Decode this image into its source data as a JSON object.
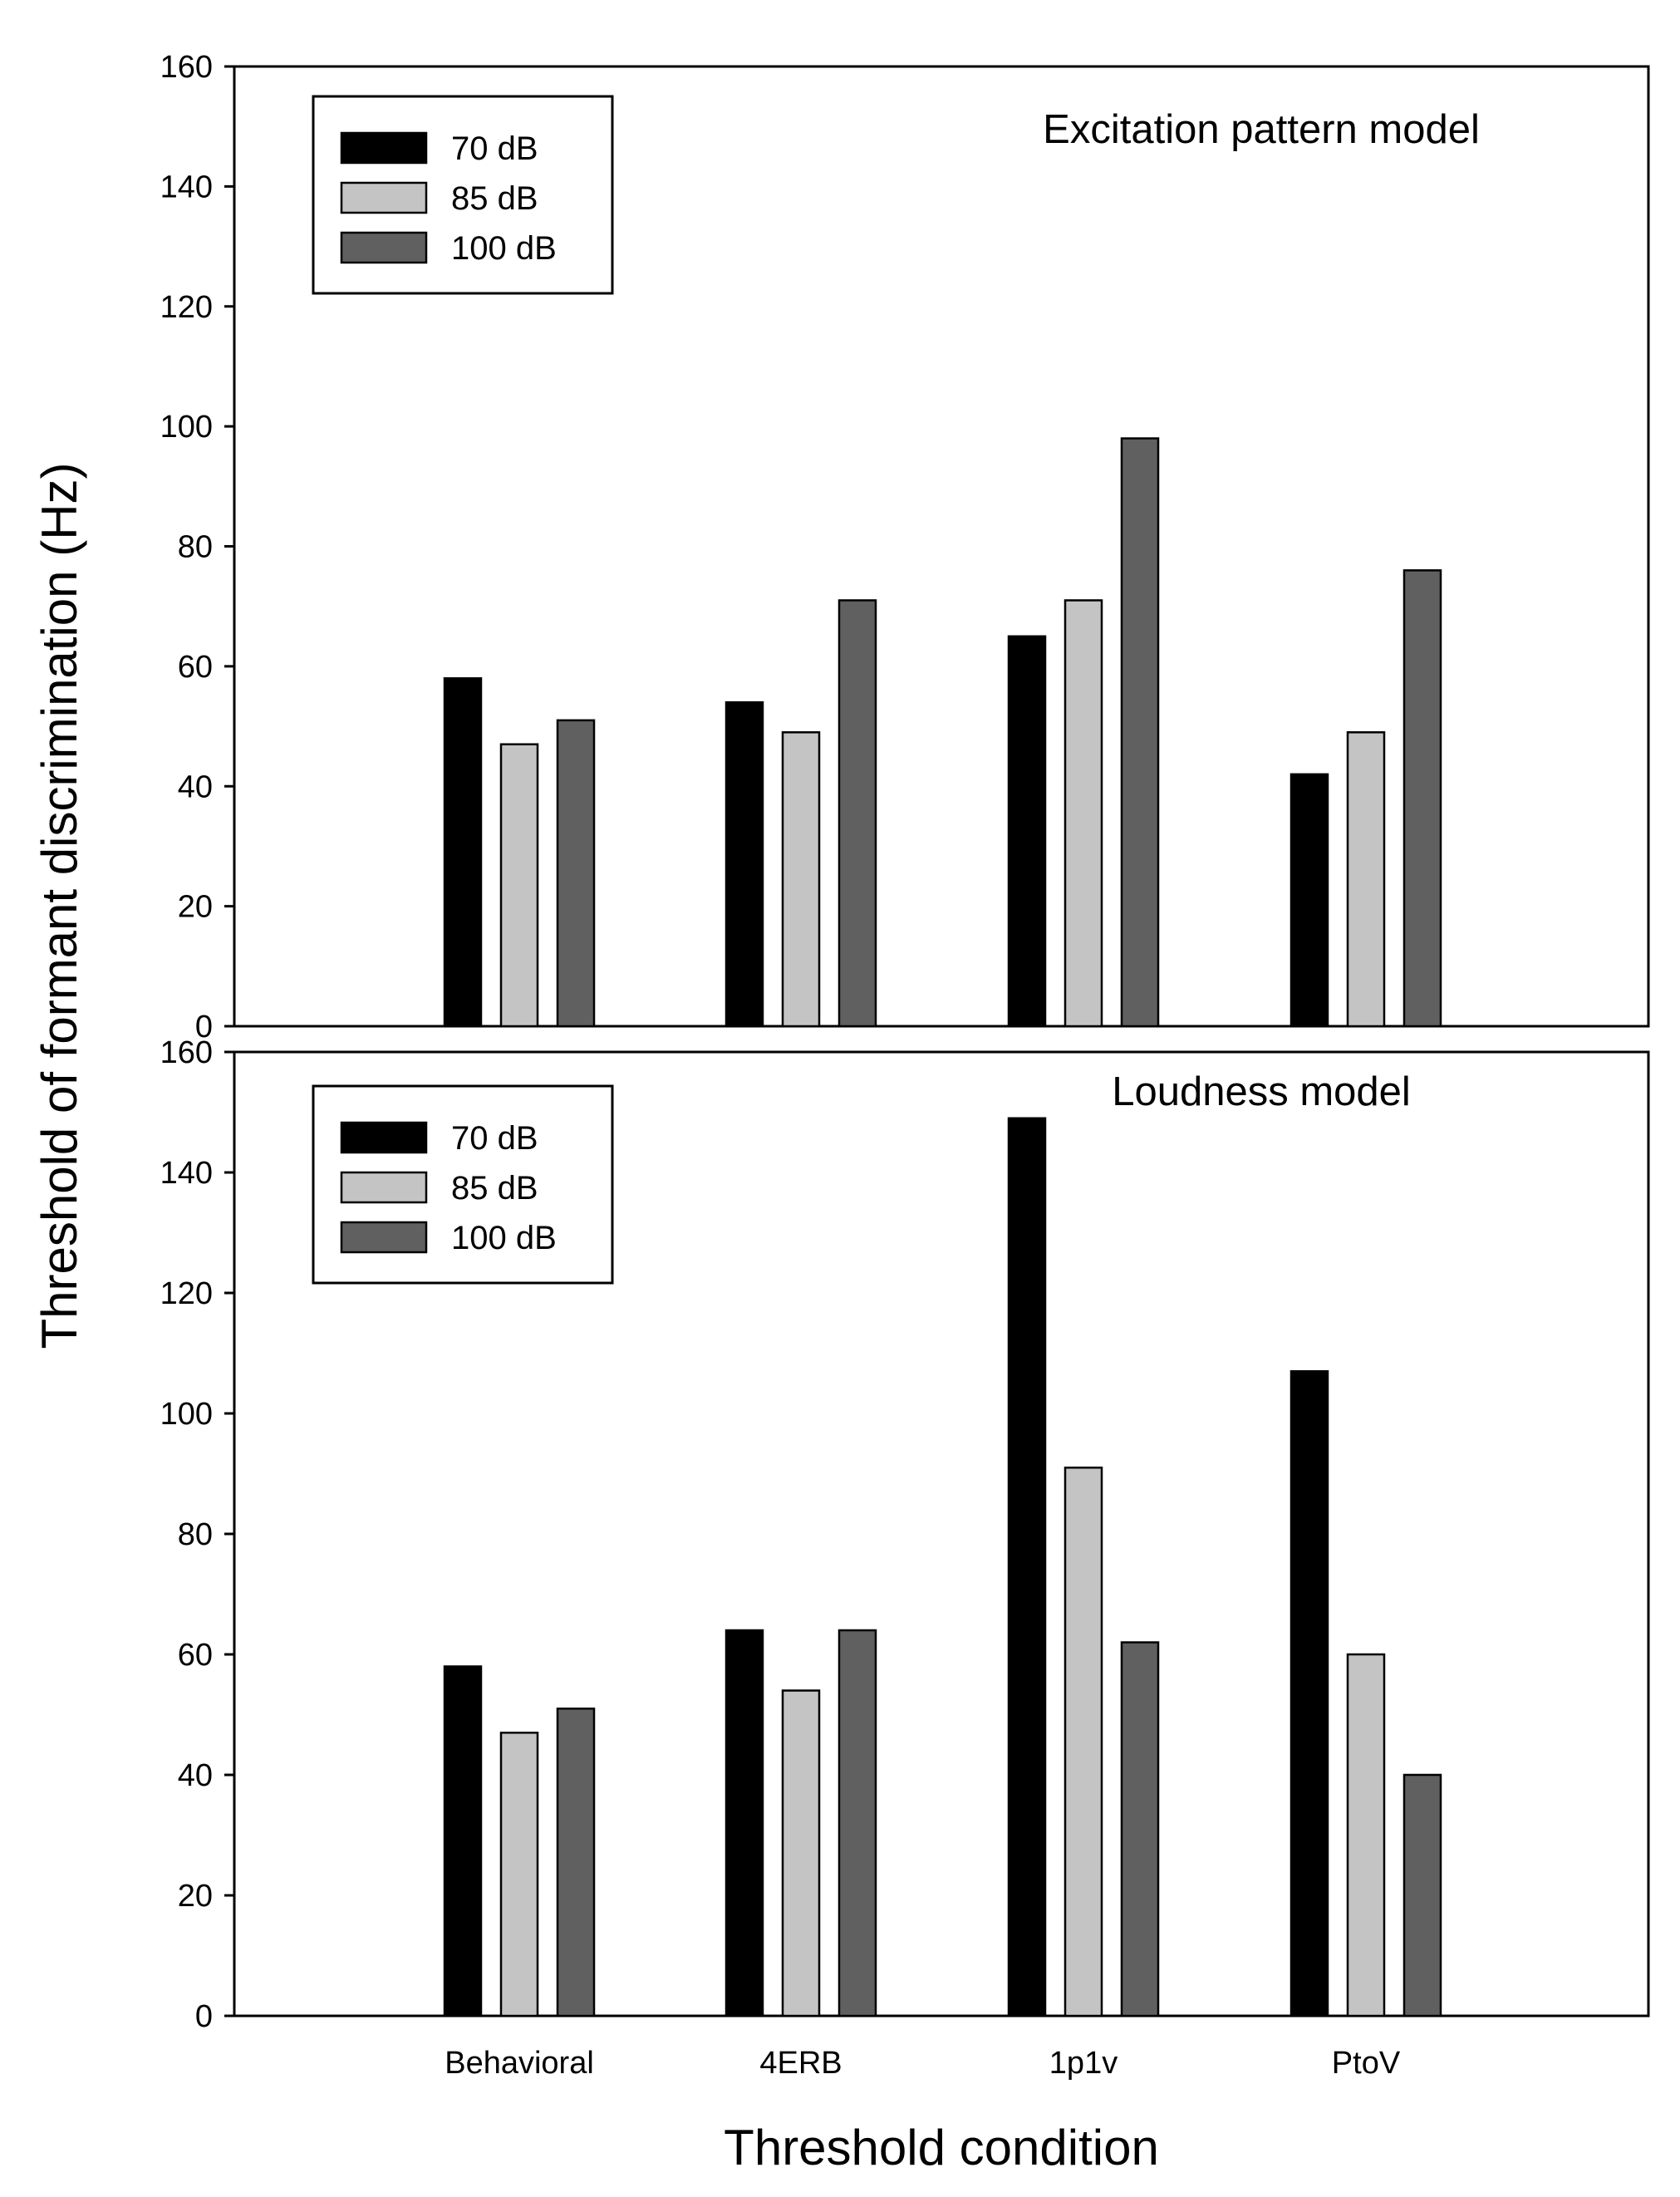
{
  "chart_data": {
    "type": "bar",
    "ylabel": "Threshold  of formant discrimination (Hz)",
    "xlabel": "Threshold condition",
    "categories": [
      "Behavioral",
      "4ERB",
      "1p1v",
      "PtoV"
    ],
    "yticks": [
      "0",
      "20",
      "40",
      "60",
      "80",
      "100",
      "120",
      "140",
      "160"
    ],
    "ylim": [
      0,
      160
    ],
    "colors": {
      "70 dB": "#000000",
      "85 dB": "#c4c4c4",
      "100 dB": "#606060"
    },
    "legend": [
      "70 dB",
      "85 dB",
      "100 dB"
    ],
    "panels": [
      {
        "title": "Excitation pattern model",
        "series": [
          {
            "name": "70 dB",
            "values": [
              58,
              54,
              65,
              42
            ]
          },
          {
            "name": "85 dB",
            "values": [
              47,
              49,
              71,
              49
            ]
          },
          {
            "name": "100 dB",
            "values": [
              51,
              71,
              98,
              76
            ]
          }
        ]
      },
      {
        "title": "Loudness model",
        "series": [
          {
            "name": "70 dB",
            "values": [
              58,
              64,
              149,
              107
            ]
          },
          {
            "name": "85 dB",
            "values": [
              47,
              54,
              91,
              60
            ]
          },
          {
            "name": "100 dB",
            "values": [
              51,
              64,
              62,
              40
            ]
          }
        ]
      }
    ]
  }
}
